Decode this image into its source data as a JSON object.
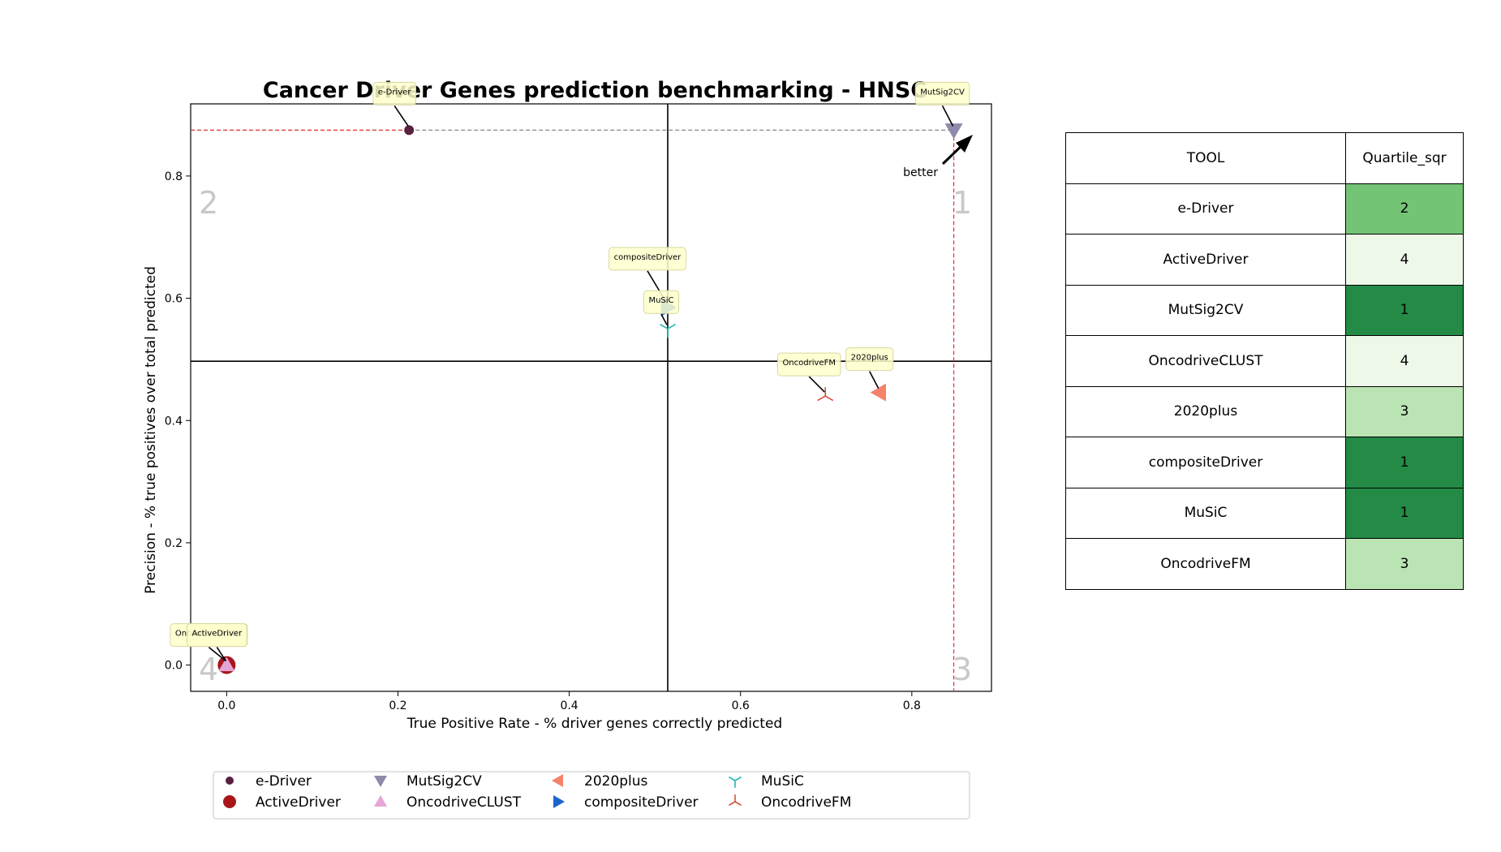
{
  "chart_data": {
    "type": "scatter",
    "title": "Cancer Driver Genes prediction benchmarking - HNSC",
    "xlabel": "True Positive Rate - % driver genes correctly predicted",
    "ylabel": "Precision - % true positives over total predicted",
    "xlim": [
      -0.042,
      0.893
    ],
    "ylim": [
      -0.043,
      0.918
    ],
    "xticks": [
      "0.0",
      "0.2",
      "0.4",
      "0.6",
      "0.8"
    ],
    "yticks": [
      "0.0",
      "0.2",
      "0.4",
      "0.6",
      "0.8"
    ],
    "quadrant_lines": {
      "x": 0.515,
      "y": 0.497
    },
    "pareto_lines": {
      "x": 0.849,
      "y": 0.875
    },
    "quadrant_labels": [
      "1",
      "2",
      "3",
      "4"
    ],
    "better_label": "better",
    "grid": false,
    "legend_position": "bottom",
    "series": [
      {
        "name": "e-Driver",
        "x": 0.213,
        "y": 0.875,
        "marker": "circle-small",
        "color": "#5a2040"
      },
      {
        "name": "ActiveDriver",
        "x": 0.0,
        "y": 0.0,
        "marker": "circle",
        "color": "#a8161b"
      },
      {
        "name": "MutSig2CV",
        "x": 0.849,
        "y": 0.875,
        "marker": "triangle-down",
        "color": "#8f8aaa"
      },
      {
        "name": "OncodriveCLUST",
        "x": 0.0,
        "y": 0.0,
        "marker": "triangle-up",
        "color": "#e4a6d6"
      },
      {
        "name": "2020plus",
        "x": 0.762,
        "y": 0.446,
        "marker": "triangle-left",
        "color": "#f5826b"
      },
      {
        "name": "compositeDriver",
        "x": 0.515,
        "y": 0.585,
        "marker": "triangle-right",
        "color": "#1a66cc"
      },
      {
        "name": "MuSiC",
        "x": 0.515,
        "y": 0.55,
        "marker": "tri-down",
        "color": "#21b9b1"
      },
      {
        "name": "OncodriveFM",
        "x": 0.699,
        "y": 0.44,
        "marker": "tri-up",
        "color": "#d4513a"
      }
    ],
    "annotations": [
      {
        "text": "e-Driver",
        "x": 0.213,
        "y": 0.875
      },
      {
        "text": "MutSig2CV",
        "x": 0.849,
        "y": 0.875
      },
      {
        "text": "compositeDriver",
        "x": 0.515,
        "y": 0.585
      },
      {
        "text": "MuSiC",
        "x": 0.515,
        "y": 0.55
      },
      {
        "text": "OncodriveFM",
        "x": 0.699,
        "y": 0.44
      },
      {
        "text": "2020plus",
        "x": 0.762,
        "y": 0.446
      },
      {
        "text": "OncodriveCLUST",
        "x": 0.0,
        "y": 0.0
      },
      {
        "text": "ActiveDriver",
        "x": 0.0,
        "y": 0.0
      }
    ],
    "table": {
      "headers": [
        "TOOL",
        "Quartile_sqr"
      ],
      "rows": [
        {
          "tool": "e-Driver",
          "quartile": "2",
          "color": "#74c476"
        },
        {
          "tool": "ActiveDriver",
          "quartile": "4",
          "color": "#edf8e9"
        },
        {
          "tool": "MutSig2CV",
          "quartile": "1",
          "color": "#238b45"
        },
        {
          "tool": "OncodriveCLUST",
          "quartile": "4",
          "color": "#edf8e9"
        },
        {
          "tool": "2020plus",
          "quartile": "3",
          "color": "#bae4b3"
        },
        {
          "tool": "compositeDriver",
          "quartile": "1",
          "color": "#238b45"
        },
        {
          "tool": "MuSiC",
          "quartile": "1",
          "color": "#238b45"
        },
        {
          "tool": "OncodriveFM",
          "quartile": "3",
          "color": "#bae4b3"
        }
      ]
    }
  }
}
